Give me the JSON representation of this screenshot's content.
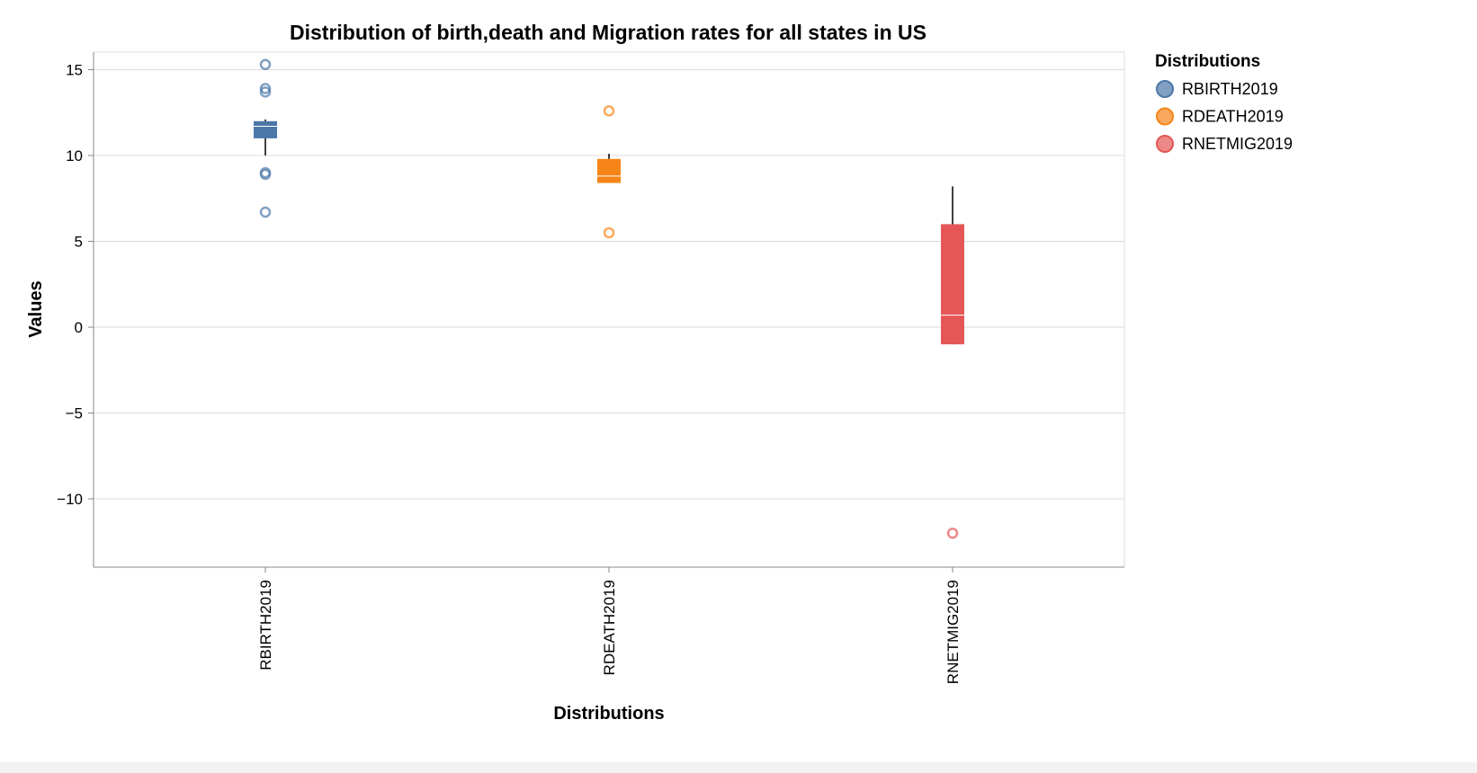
{
  "chart_data": {
    "type": "boxplot",
    "title": "Distribution of birth,death and Migration rates for all states in US",
    "xlabel": "Distributions",
    "ylabel": "Values",
    "ylim": [
      -14,
      16
    ],
    "yticks": [
      15,
      10,
      5,
      0,
      -5,
      -10
    ],
    "ytick_labels": [
      "15",
      "10",
      "5",
      "0",
      "−5",
      "−10"
    ],
    "grid": true,
    "legend": {
      "title": "Distributions",
      "position": "right",
      "items": [
        "RBIRTH2019",
        "RDEATH2019",
        "RNETMIG2019"
      ]
    },
    "categories": [
      "RBIRTH2019",
      "RDEATH2019",
      "RNETMIG2019"
    ],
    "series": [
      {
        "name": "RBIRTH2019",
        "color": "#4c78a8",
        "whisker_low": 10.0,
        "q1": 11.0,
        "median": 11.7,
        "q3": 12.0,
        "whisker_high": 12.1,
        "outliers": [
          15.3,
          13.9,
          13.7,
          9.0,
          8.9,
          6.7
        ]
      },
      {
        "name": "RDEATH2019",
        "color": "#f58518",
        "whisker_low": 8.4,
        "q1": 8.4,
        "median": 8.8,
        "q3": 9.8,
        "whisker_high": 10.1,
        "outliers": [
          12.6,
          5.5
        ]
      },
      {
        "name": "RNETMIG2019",
        "color": "#e45756",
        "whisker_low": -1.0,
        "q1": -1.0,
        "median": 0.7,
        "q3": 6.0,
        "whisker_high": 8.2,
        "outliers": [
          -12.0
        ]
      }
    ]
  }
}
